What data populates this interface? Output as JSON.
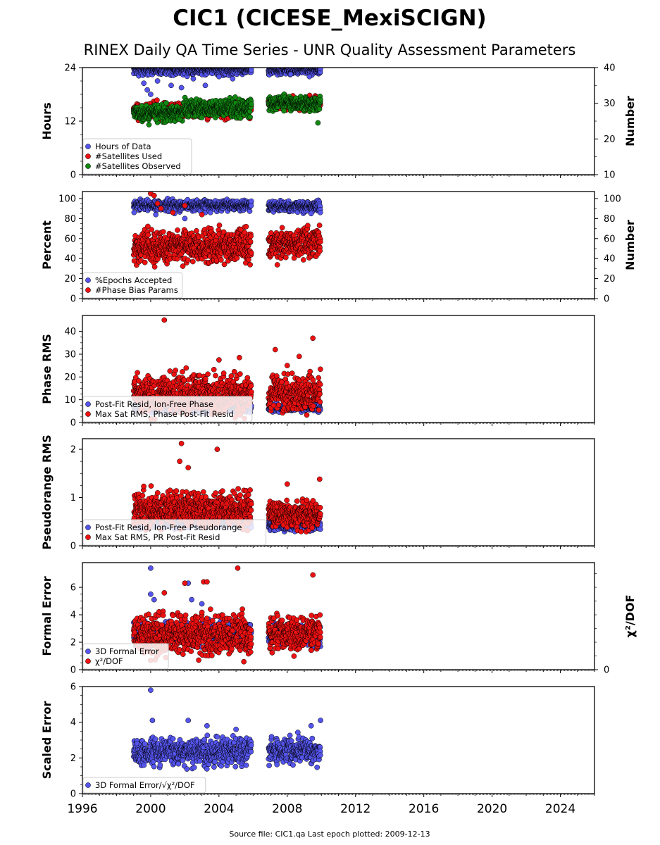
{
  "figure": {
    "title": "CIC1 (CICESE_MexiSCIGN)",
    "subtitle": "RINEX Daily QA Time Series - UNR Quality Assessment Parameters",
    "footer": "Source file: CIC1.qa Last epoch plotted: 2009-12-13",
    "colors": {
      "blue": "#5555ee",
      "red": "#ee1111",
      "green": "#118811",
      "edge": "#000000"
    }
  },
  "chart_data": [
    {
      "type": "scatter",
      "ylabel": "Hours",
      "ylim": [
        0,
        24
      ],
      "yticks": [
        0,
        12,
        24
      ],
      "y2label": "Number",
      "y2lim": [
        10,
        40
      ],
      "y2ticks": [
        10,
        20,
        30,
        40
      ],
      "xlim": [
        1996,
        2026
      ],
      "xticks": [
        1996,
        2000,
        2004,
        2008,
        2012,
        2016,
        2020,
        2024
      ],
      "legend_position": "lower-left",
      "series": [
        {
          "name": "Hours of Data",
          "color": "blue",
          "axis": "left",
          "segments": [
            [
              1999.0,
              2005.9,
              23.6,
              0.6
            ],
            [
              2006.9,
              2009.95,
              23.5,
              0.5
            ]
          ],
          "outliers": [
            [
              1999.6,
              20.5
            ],
            [
              1999.8,
              19.0
            ],
            [
              2000.0,
              18.0
            ],
            [
              2000.4,
              21.0
            ],
            [
              2001.2,
              20.0
            ],
            [
              2001.8,
              19.5
            ],
            [
              2002.5,
              21.5
            ],
            [
              2003.2,
              20.0
            ],
            [
              2004.0,
              22.0
            ],
            [
              2004.8,
              21.5
            ],
            [
              2008.2,
              22.5
            ],
            [
              2009.3,
              22.0
            ]
          ]
        },
        {
          "name": "#Satellites Used",
          "color": "red",
          "axis": "right",
          "segments": [
            [
              1999.0,
              2005.9,
              28.0,
              1.0
            ],
            [
              2006.9,
              2009.95,
              30.0,
              0.8
            ]
          ],
          "outliers": []
        },
        {
          "name": "#Satellites Observed",
          "color": "green",
          "axis": "right",
          "segments": [
            [
              1999.0,
              2001.9,
              27.3,
              1.0
            ],
            [
              2001.9,
              2005.9,
              28.5,
              1.2
            ],
            [
              2006.9,
              2009.95,
              30.0,
              1.0
            ]
          ],
          "outliers": [
            [
              1999.9,
              24.0
            ],
            [
              2000.3,
              25.5
            ],
            [
              2001.7,
              25.5
            ],
            [
              2003.0,
              26.0
            ],
            [
              2009.8,
              24.5
            ]
          ]
        }
      ]
    },
    {
      "type": "scatter",
      "ylabel": "Percent",
      "ylim": [
        0,
        107
      ],
      "yticks": [
        0,
        20,
        40,
        60,
        80,
        100
      ],
      "y2label": "Number",
      "y2lim": [
        0,
        107
      ],
      "y2ticks": [
        0,
        20,
        40,
        60,
        80,
        100
      ],
      "xlim": [
        1996,
        2026
      ],
      "xticks": [
        1996,
        2000,
        2004,
        2008,
        2012,
        2016,
        2020,
        2024
      ],
      "legend_position": "lower-left",
      "series": [
        {
          "name": "%Epochs Accepted",
          "color": "blue",
          "axis": "left",
          "segments": [
            [
              1999.0,
              2005.9,
              93.0,
              2.5
            ],
            [
              2006.9,
              2009.95,
              92.0,
              2.5
            ]
          ],
          "outliers": [
            [
              2000.3,
              84.0
            ],
            [
              2001.4,
              85.0
            ],
            [
              2002.0,
              80.0
            ],
            [
              2003.5,
              86.0
            ],
            [
              2009.4,
              85.0
            ]
          ]
        },
        {
          "name": "#Phase Bias Params",
          "color": "red",
          "axis": "right",
          "segments": [
            [
              1999.0,
              2001.9,
              52.0,
              8.0
            ],
            [
              2001.9,
              2005.9,
              53.0,
              8.0
            ],
            [
              2006.9,
              2009.95,
              56.0,
              7.0
            ]
          ],
          "outliers": [
            [
              2000.0,
              105.0
            ],
            [
              2000.2,
              103.0
            ],
            [
              2000.4,
              95.0
            ],
            [
              2000.6,
              90.0
            ],
            [
              2001.3,
              86.0
            ],
            [
              2002.0,
              93.0
            ],
            [
              2003.0,
              84.0
            ],
            [
              2009.2,
              73.0
            ]
          ]
        }
      ]
    },
    {
      "type": "scatter",
      "ylabel": "Phase RMS",
      "ylim": [
        0,
        47
      ],
      "yticks": [
        0,
        10,
        20,
        30,
        40
      ],
      "xlim": [
        1996,
        2026
      ],
      "xticks": [
        1996,
        2000,
        2004,
        2008,
        2012,
        2016,
        2020,
        2024
      ],
      "legend_position": "lower-left",
      "series": [
        {
          "name": "Post-Fit Resid, Ion-Free Phase",
          "color": "blue",
          "axis": "left",
          "segments": [
            [
              1999.0,
              2005.9,
              6.2,
              0.8
            ],
            [
              2006.9,
              2009.95,
              6.5,
              0.8
            ]
          ],
          "outliers": []
        },
        {
          "name": "Max Sat RMS, Phase Post-Fit Resid",
          "color": "red",
          "axis": "left",
          "segments": [
            [
              1999.0,
              2005.9,
              12.0,
              4.0
            ],
            [
              2006.9,
              2009.95,
              12.5,
              4.0
            ]
          ],
          "outliers": [
            [
              2000.8,
              45.0
            ],
            [
              2004.0,
              27.5
            ],
            [
              2005.2,
              28.5
            ],
            [
              2007.3,
              32.0
            ],
            [
              2008.0,
              25.0
            ],
            [
              2008.7,
              29.0
            ],
            [
              2009.5,
              37.0
            ]
          ]
        }
      ]
    },
    {
      "type": "scatter",
      "ylabel": "Pseudorange RMS",
      "ylim": [
        0,
        2.22
      ],
      "yticks": [
        0,
        1,
        2
      ],
      "xlim": [
        1996,
        2026
      ],
      "xticks": [
        1996,
        2000,
        2004,
        2008,
        2012,
        2016,
        2020,
        2024
      ],
      "legend_position": "lower-left",
      "series": [
        {
          "name": "Post-Fit Resid, Ion-Free Pseudorange",
          "color": "blue",
          "axis": "left",
          "segments": [
            [
              1999.0,
              2005.9,
              0.48,
              0.05
            ],
            [
              2006.9,
              2009.95,
              0.42,
              0.05
            ]
          ],
          "outliers": []
        },
        {
          "name": "Max Sat RMS, PR Post-Fit Resid",
          "color": "red",
          "axis": "left",
          "segments": [
            [
              1999.0,
              2005.9,
              0.75,
              0.17
            ],
            [
              2006.9,
              2009.95,
              0.65,
              0.13
            ]
          ],
          "outliers": [
            [
              2001.7,
              1.75
            ],
            [
              2001.8,
              2.12
            ],
            [
              2002.2,
              1.62
            ],
            [
              2003.9,
              2.0
            ],
            [
              2008.0,
              1.28
            ],
            [
              2009.9,
              1.38
            ]
          ]
        }
      ]
    },
    {
      "type": "scatter",
      "ylabel": "Formal Error",
      "ylim": [
        0,
        7.8
      ],
      "yticks": [
        0,
        2,
        4,
        6
      ],
      "y2label": "χ²/DOF",
      "y2lim": [
        0,
        7.8
      ],
      "y2ticks": [
        0
      ],
      "xlim": [
        1996,
        2026
      ],
      "xticks": [
        1996,
        2000,
        2004,
        2008,
        2012,
        2016,
        2020,
        2024
      ],
      "legend_position": "lower-left",
      "series": [
        {
          "name": "3D Formal Error",
          "color": "blue",
          "axis": "left",
          "segments": [
            [
              1999.0,
              2005.9,
              2.6,
              0.4
            ],
            [
              2006.9,
              2009.95,
              2.5,
              0.35
            ]
          ],
          "outliers": [
            [
              2000.0,
              7.4
            ],
            [
              2000.0,
              5.5
            ],
            [
              2000.2,
              5.1
            ],
            [
              2002.2,
              6.3
            ],
            [
              2002.4,
              5.1
            ],
            [
              2003.0,
              4.8
            ]
          ]
        },
        {
          "name": "χ²/DOF",
          "color": "red",
          "axis": "right",
          "segments": [
            [
              1999.0,
              2005.9,
              2.5,
              0.7
            ],
            [
              2006.9,
              2009.95,
              2.6,
              0.6
            ]
          ],
          "outliers": [
            [
              2000.8,
              5.6
            ],
            [
              2002.0,
              6.3
            ],
            [
              2003.1,
              6.4
            ],
            [
              2003.3,
              6.4
            ],
            [
              2005.1,
              7.4
            ],
            [
              2009.5,
              6.9
            ]
          ]
        }
      ]
    },
    {
      "type": "scatter",
      "ylabel": "Scaled Error",
      "ylim": [
        0,
        6
      ],
      "yticks": [
        0,
        2,
        4,
        6
      ],
      "xlim": [
        1996,
        2026
      ],
      "xticks": [
        1996,
        2000,
        2004,
        2008,
        2012,
        2016,
        2020,
        2024
      ],
      "legend_position": "lower-left",
      "series": [
        {
          "name": "3D Formal Error/√χ²/DOF",
          "color": "blue",
          "axis": "left",
          "segments": [
            [
              1999.0,
              2005.9,
              2.35,
              0.35
            ],
            [
              2006.9,
              2009.95,
              2.4,
              0.35
            ]
          ],
          "outliers": [
            [
              2000.0,
              5.8
            ],
            [
              2000.1,
              4.1
            ],
            [
              2002.2,
              4.1
            ],
            [
              2003.3,
              3.8
            ],
            [
              2005.0,
              3.6
            ],
            [
              2009.4,
              3.8
            ],
            [
              2009.95,
              4.1
            ]
          ]
        }
      ]
    }
  ]
}
